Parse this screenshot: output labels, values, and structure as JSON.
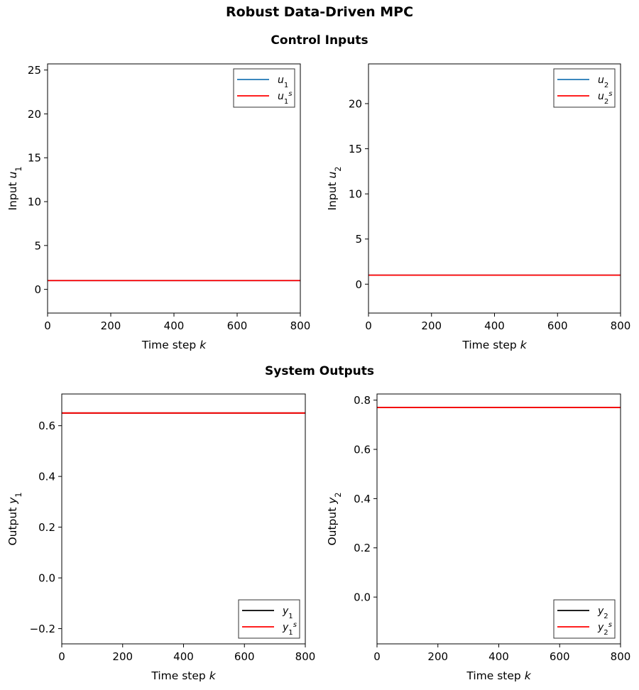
{
  "figure": {
    "title": "Robust Data-Driven MPC",
    "row_titles": [
      "Control Inputs",
      "System Outputs"
    ]
  },
  "chart_data": [
    {
      "type": "line",
      "ylabel": "Input u₁",
      "xlabel": "Time step k",
      "xlim": [
        0,
        800
      ],
      "ylim": [
        -2.7,
        25.7
      ],
      "xticks": [
        0,
        200,
        400,
        600,
        800
      ],
      "yticks": [
        0,
        5,
        10,
        15,
        20,
        25
      ],
      "legend_loc": "upper right",
      "series": [
        {
          "name": "u₁",
          "color": "#1f77b4",
          "x": [
            0,
            800
          ],
          "y": [
            1.0,
            1.0
          ]
        },
        {
          "name": "u₁ˢ",
          "color": "#ff0000",
          "x": [
            0,
            800
          ],
          "y": [
            1.0,
            1.0
          ]
        }
      ]
    },
    {
      "type": "line",
      "ylabel": "Input u₂",
      "xlabel": "Time step k",
      "xlim": [
        0,
        800
      ],
      "ylim": [
        -3.2,
        24.4
      ],
      "xticks": [
        0,
        200,
        400,
        600,
        800
      ],
      "yticks": [
        0,
        5,
        10,
        15,
        20
      ],
      "legend_loc": "upper right",
      "series": [
        {
          "name": "u₂",
          "color": "#1f77b4",
          "x": [
            0,
            800
          ],
          "y": [
            1.0,
            1.0
          ]
        },
        {
          "name": "u₂ˢ",
          "color": "#ff0000",
          "x": [
            0,
            800
          ],
          "y": [
            1.0,
            1.0
          ]
        }
      ]
    },
    {
      "type": "line",
      "ylabel": "Output y₁",
      "xlabel": "Time step k",
      "xlim": [
        0,
        800
      ],
      "ylim": [
        -0.26,
        0.725
      ],
      "xticks": [
        0,
        200,
        400,
        600,
        800
      ],
      "yticks": [
        -0.2,
        0.0,
        0.2,
        0.4,
        0.6
      ],
      "ytick_labels": [
        "−0.2",
        "0.0",
        "0.2",
        "0.4",
        "0.6"
      ],
      "legend_loc": "lower right",
      "series": [
        {
          "name": "y₁",
          "color": "#000000",
          "x": [
            0,
            800
          ],
          "y": [
            0.65,
            0.65
          ]
        },
        {
          "name": "y₁ˢ",
          "color": "#ff0000",
          "x": [
            0,
            800
          ],
          "y": [
            0.65,
            0.65
          ]
        }
      ]
    },
    {
      "type": "line",
      "ylabel": "Output y₂",
      "xlabel": "Time step k",
      "xlim": [
        0,
        800
      ],
      "ylim": [
        -0.19,
        0.825
      ],
      "xticks": [
        0,
        200,
        400,
        600,
        800
      ],
      "yticks": [
        0.0,
        0.2,
        0.4,
        0.6,
        0.8
      ],
      "ytick_labels": [
        "0.0",
        "0.2",
        "0.4",
        "0.6",
        "0.8"
      ],
      "legend_loc": "lower right",
      "series": [
        {
          "name": "y₂",
          "color": "#000000",
          "x": [
            0,
            800
          ],
          "y": [
            0.77,
            0.77
          ]
        },
        {
          "name": "y₂ˢ",
          "color": "#ff0000",
          "x": [
            0,
            800
          ],
          "y": [
            0.77,
            0.77
          ]
        }
      ]
    }
  ]
}
